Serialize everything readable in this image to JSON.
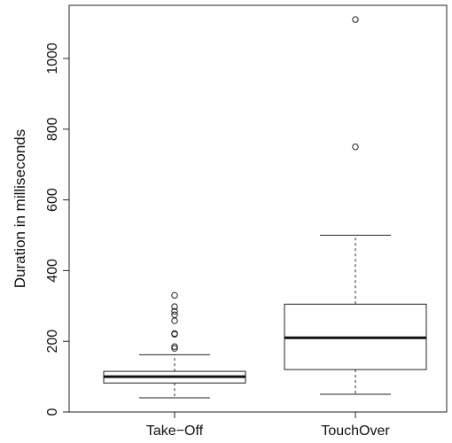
{
  "chart_data": {
    "type": "boxplot",
    "title": "",
    "xlabel": "",
    "ylabel": "Duration in milliseconds",
    "ylim": [
      0,
      1100
    ],
    "y_ticks": [
      0,
      200,
      400,
      600,
      800,
      1000
    ],
    "y_tick_labels": [
      "0",
      "200",
      "400",
      "600",
      "800",
      "1000"
    ],
    "grid": false,
    "categories": [
      "Take−Off",
      "TouchOver"
    ],
    "boxes": [
      {
        "category": "Take−Off",
        "whisker_low": 40,
        "q1": 82,
        "median": 100,
        "q3": 115,
        "whisker_high": 162,
        "outliers": [
          180,
          185,
          220,
          222,
          258,
          275,
          285,
          298,
          330
        ]
      },
      {
        "category": "TouchOver",
        "whisker_low": 50,
        "q1": 120,
        "median": 210,
        "q3": 305,
        "whisker_high": 500,
        "outliers": [
          750,
          1110
        ]
      }
    ]
  }
}
